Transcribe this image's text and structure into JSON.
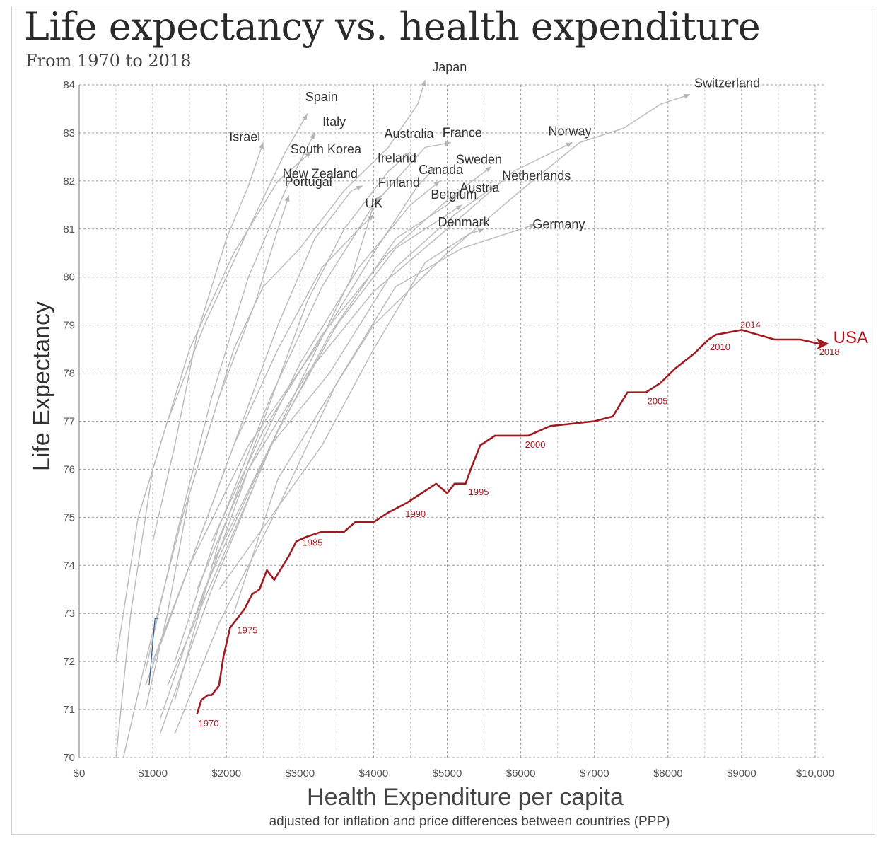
{
  "title": "Life expectancy vs. health expenditure",
  "subtitle": "From 1970 to 2018",
  "chart_data": {
    "type": "line",
    "title": "Life expectancy vs. health expenditure",
    "subtitle": "From 1970 to 2018",
    "xlabel": "Health Expenditure per capita",
    "xlabel_note": "adjusted for inflation and price differences between countries (PPP)",
    "ylabel": "Life Expectancy",
    "xlim": [
      0,
      10000
    ],
    "ylim": [
      70,
      84
    ],
    "x_ticks": [
      0,
      1000,
      2000,
      3000,
      4000,
      5000,
      6000,
      7000,
      8000,
      9000,
      10000
    ],
    "x_tick_labels": [
      "$0",
      "$1000",
      "$2000",
      "$3000",
      "$4000",
      "$5000",
      "$6000",
      "$7000",
      "$8000",
      "$9000",
      "$10,000"
    ],
    "y_ticks": [
      70,
      71,
      72,
      73,
      74,
      75,
      76,
      77,
      78,
      79,
      80,
      81,
      82,
      83,
      84
    ],
    "grid": true,
    "colors": {
      "usa": "#a01a22",
      "others": "#bdbdbd",
      "minor": "#2e5c87"
    },
    "usa": {
      "name": "USA",
      "points": [
        [
          1600,
          70.9
        ],
        [
          1660,
          71.2
        ],
        [
          1750,
          71.3
        ],
        [
          1800,
          71.3
        ],
        [
          1900,
          71.5
        ],
        [
          1960,
          72.1
        ],
        [
          2050,
          72.7
        ],
        [
          2150,
          72.9
        ],
        [
          2250,
          73.1
        ],
        [
          2350,
          73.4
        ],
        [
          2450,
          73.5
        ],
        [
          2550,
          73.9
        ],
        [
          2650,
          73.7
        ],
        [
          2850,
          74.2
        ],
        [
          2950,
          74.5
        ],
        [
          3100,
          74.6
        ],
        [
          3300,
          74.7
        ],
        [
          3600,
          74.7
        ],
        [
          3750,
          74.9
        ],
        [
          4000,
          74.9
        ],
        [
          4200,
          75.1
        ],
        [
          4450,
          75.3
        ],
        [
          4650,
          75.5
        ],
        [
          4850,
          75.7
        ],
        [
          5000,
          75.5
        ],
        [
          5100,
          75.7
        ],
        [
          5250,
          75.7
        ],
        [
          5320,
          76.0
        ],
        [
          5450,
          76.5
        ],
        [
          5650,
          76.7
        ],
        [
          6000,
          76.7
        ],
        [
          6100,
          76.7
        ],
        [
          6400,
          76.9
        ],
        [
          7000,
          77.0
        ],
        [
          7250,
          77.1
        ],
        [
          7450,
          77.6
        ],
        [
          7700,
          77.6
        ],
        [
          7900,
          77.8
        ],
        [
          8100,
          78.1
        ],
        [
          8350,
          78.4
        ],
        [
          8550,
          78.7
        ],
        [
          8650,
          78.8
        ],
        [
          9000,
          78.9
        ],
        [
          9450,
          78.7
        ],
        [
          9800,
          78.7
        ],
        [
          10150,
          78.6
        ]
      ],
      "year_labels": [
        {
          "year": "1970",
          "x": 1600,
          "y": 70.9
        },
        {
          "year": "1975",
          "x": 2050,
          "y": 72.7
        },
        {
          "year": "1985",
          "x": 3300,
          "y": 74.7
        },
        {
          "year": "1990",
          "x": 4450,
          "y": 75.3
        },
        {
          "year": "1995",
          "x": 5250,
          "y": 75.7
        },
        {
          "year": "2000",
          "x": 6000,
          "y": 76.7
        },
        {
          "year": "2005",
          "x": 7700,
          "y": 77.6
        },
        {
          "year": "2010",
          "x": 8550,
          "y": 78.7
        },
        {
          "year": "2014",
          "x": 9000,
          "y": 78.9
        },
        {
          "year": "2018",
          "x": 10150,
          "y": 78.6
        }
      ]
    },
    "series": [
      {
        "name": "Japan",
        "points": [
          [
            900,
            71.0
          ],
          [
            1200,
            73.0
          ],
          [
            1500,
            75.5
          ],
          [
            1800,
            77.0
          ],
          [
            2100,
            78.5
          ],
          [
            2500,
            79.8
          ],
          [
            3000,
            80.6
          ],
          [
            3600,
            81.8
          ],
          [
            4200,
            82.7
          ],
          [
            4600,
            83.6
          ],
          [
            4700,
            84.1
          ]
        ]
      },
      {
        "name": "Switzerland",
        "points": [
          [
            2100,
            73.0
          ],
          [
            2700,
            75.8
          ],
          [
            3300,
            77.3
          ],
          [
            4000,
            79.0
          ],
          [
            5000,
            80.5
          ],
          [
            6000,
            81.8
          ],
          [
            6800,
            82.8
          ],
          [
            7400,
            83.1
          ],
          [
            7900,
            83.6
          ],
          [
            8300,
            83.8
          ]
        ]
      },
      {
        "name": "Spain",
        "points": [
          [
            500,
            72.0
          ],
          [
            800,
            75.0
          ],
          [
            1200,
            77.0
          ],
          [
            1700,
            79.0
          ],
          [
            2300,
            81.0
          ],
          [
            2800,
            82.6
          ],
          [
            3100,
            83.4
          ]
        ]
      },
      {
        "name": "Italy",
        "points": [
          [
            900,
            71.8
          ],
          [
            1300,
            74.5
          ],
          [
            1800,
            77.5
          ],
          [
            2300,
            80.0
          ],
          [
            2800,
            81.8
          ],
          [
            3200,
            83.0
          ]
        ]
      },
      {
        "name": "Israel",
        "points": [
          [
            1000,
            74.5
          ],
          [
            1300,
            76.5
          ],
          [
            1600,
            78.8
          ],
          [
            2000,
            80.8
          ],
          [
            2300,
            81.9
          ],
          [
            2500,
            82.8
          ]
        ]
      },
      {
        "name": "South Korea",
        "points": [
          [
            500,
            70.0
          ],
          [
            700,
            73.0
          ],
          [
            1000,
            76.0
          ],
          [
            1500,
            78.5
          ],
          [
            2100,
            80.5
          ],
          [
            2700,
            82.0
          ],
          [
            3150,
            82.6
          ]
        ]
      },
      {
        "name": "Australia",
        "points": [
          [
            1300,
            71.2
          ],
          [
            1900,
            74.5
          ],
          [
            2500,
            77.0
          ],
          [
            3100,
            79.5
          ],
          [
            3600,
            81.0
          ],
          [
            4200,
            82.2
          ],
          [
            4500,
            82.6
          ]
        ]
      },
      {
        "name": "France",
        "points": [
          [
            1300,
            72.0
          ],
          [
            1900,
            74.8
          ],
          [
            2600,
            77.5
          ],
          [
            3300,
            79.8
          ],
          [
            4000,
            81.5
          ],
          [
            4700,
            82.7
          ],
          [
            5050,
            82.8
          ]
        ]
      },
      {
        "name": "Norway",
        "points": [
          [
            1600,
            73.5
          ],
          [
            2300,
            76.0
          ],
          [
            3100,
            78.0
          ],
          [
            4000,
            79.7
          ],
          [
            5000,
            81.0
          ],
          [
            5900,
            82.2
          ],
          [
            6700,
            82.8
          ]
        ]
      },
      {
        "name": "Sweden",
        "points": [
          [
            1800,
            74.5
          ],
          [
            2500,
            76.8
          ],
          [
            3300,
            78.8
          ],
          [
            4200,
            80.5
          ],
          [
            5000,
            81.6
          ],
          [
            5600,
            82.3
          ]
        ]
      },
      {
        "name": "Ireland",
        "points": [
          [
            900,
            71.5
          ],
          [
            1500,
            74.0
          ],
          [
            2300,
            76.5
          ],
          [
            3200,
            78.5
          ],
          [
            4000,
            80.5
          ],
          [
            4600,
            81.9
          ],
          [
            4850,
            82.3
          ]
        ]
      },
      {
        "name": "Canada",
        "points": [
          [
            1600,
            73.0
          ],
          [
            2300,
            76.0
          ],
          [
            3000,
            78.2
          ],
          [
            3800,
            80.2
          ],
          [
            4500,
            81.5
          ],
          [
            4900,
            82.0
          ]
        ]
      },
      {
        "name": "New Zealand",
        "points": [
          [
            1000,
            72.0
          ],
          [
            1500,
            74.0
          ],
          [
            2100,
            76.5
          ],
          [
            2700,
            79.0
          ],
          [
            3200,
            80.8
          ],
          [
            3700,
            81.8
          ],
          [
            3850,
            81.9
          ]
        ]
      },
      {
        "name": "Netherlands",
        "points": [
          [
            1800,
            74.0
          ],
          [
            2600,
            76.5
          ],
          [
            3400,
            78.0
          ],
          [
            4300,
            80.2
          ],
          [
            5100,
            81.3
          ],
          [
            5650,
            81.9
          ]
        ]
      },
      {
        "name": "Finland",
        "points": [
          [
            1100,
            70.8
          ],
          [
            1700,
            73.5
          ],
          [
            2300,
            75.5
          ],
          [
            3000,
            77.8
          ],
          [
            3700,
            80.0
          ],
          [
            4000,
            81.5
          ],
          [
            4100,
            81.7
          ]
        ]
      },
      {
        "name": "Austria",
        "points": [
          [
            1100,
            70.5
          ],
          [
            1800,
            73.5
          ],
          [
            2600,
            76.5
          ],
          [
            3400,
            78.8
          ],
          [
            4300,
            80.8
          ],
          [
            5000,
            81.5
          ],
          [
            5200,
            81.8
          ]
        ]
      },
      {
        "name": "Portugal",
        "points": [
          [
            600,
            70.0
          ],
          [
            900,
            72.0
          ],
          [
            1400,
            75.0
          ],
          [
            1900,
            77.5
          ],
          [
            2400,
            79.5
          ],
          [
            2700,
            81.0
          ],
          [
            2850,
            81.7
          ]
        ]
      },
      {
        "name": "Belgium",
        "points": [
          [
            1200,
            71.5
          ],
          [
            1900,
            74.0
          ],
          [
            2700,
            76.8
          ],
          [
            3500,
            79.0
          ],
          [
            4300,
            80.6
          ],
          [
            5000,
            81.3
          ],
          [
            5200,
            81.5
          ]
        ]
      },
      {
        "name": "UK",
        "points": [
          [
            1000,
            72.0
          ],
          [
            1500,
            74.0
          ],
          [
            2100,
            76.5
          ],
          [
            2700,
            78.5
          ],
          [
            3300,
            80.2
          ],
          [
            3800,
            81.0
          ],
          [
            4000,
            81.3
          ]
        ]
      },
      {
        "name": "Denmark",
        "points": [
          [
            1900,
            73.5
          ],
          [
            2600,
            75.0
          ],
          [
            3300,
            76.5
          ],
          [
            4000,
            78.5
          ],
          [
            4700,
            80.3
          ],
          [
            5300,
            80.9
          ],
          [
            5500,
            81.0
          ]
        ]
      },
      {
        "name": "Germany",
        "points": [
          [
            1300,
            70.5
          ],
          [
            1900,
            72.8
          ],
          [
            2700,
            75.2
          ],
          [
            3500,
            77.8
          ],
          [
            4300,
            79.8
          ],
          [
            5200,
            80.6
          ],
          [
            6000,
            81.0
          ],
          [
            6200,
            81.1
          ]
        ]
      }
    ]
  }
}
